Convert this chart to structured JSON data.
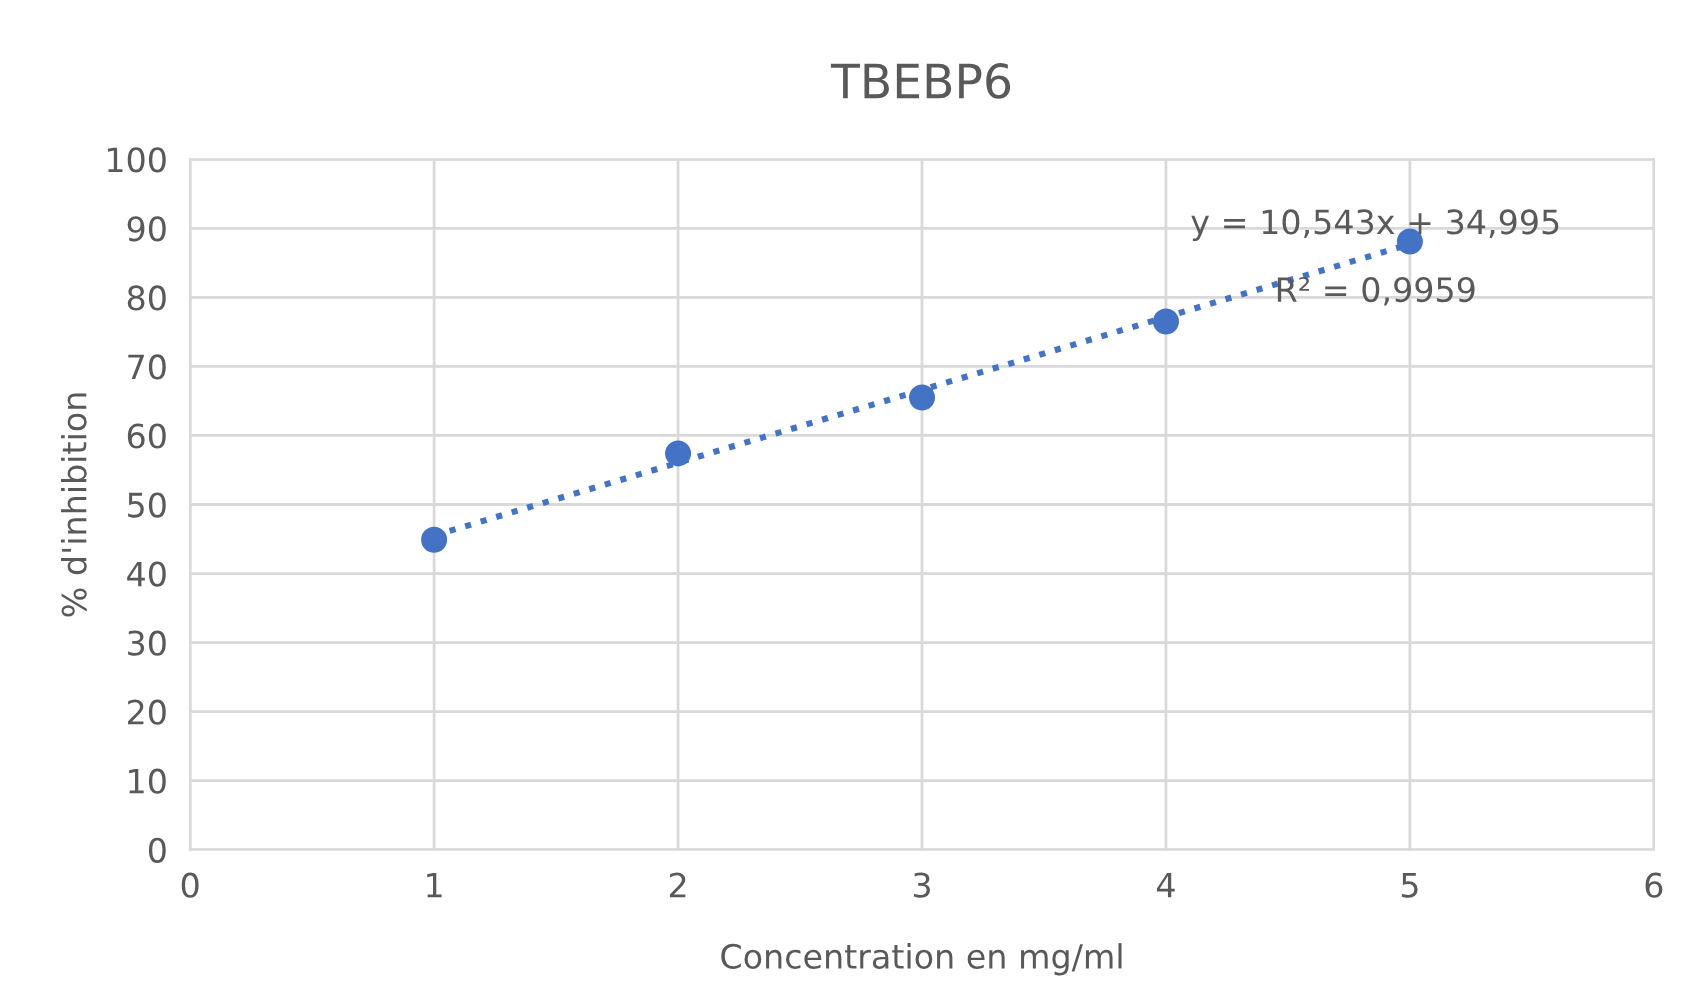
{
  "chart_data": {
    "type": "scatter",
    "title": "TBEBP6",
    "xlabel": "Concentration en mg/ml",
    "ylabel": "% d'inhibition",
    "series": [
      {
        "color": "#4472c4",
        "x": [
          1,
          2,
          3,
          4,
          5
        ],
        "values": [
          44.9,
          57.4,
          65.5,
          76.5,
          88.1
        ],
        "marker": "circle"
      },
      {
        "type": "line",
        "color": "#4472c4",
        "x": [
          1,
          5
        ],
        "values": [
          45.5,
          87.7
        ],
        "line_style": "dotted",
        "marker": "none"
      }
    ],
    "annotations": [
      "y = 10,543x + 34,995",
      "R² = 0,9959"
    ],
    "xlim": [
      0,
      6
    ],
    "xticks": [
      0,
      1,
      2,
      3,
      4,
      5,
      6
    ],
    "ylim": [
      0,
      100
    ],
    "yticks": [
      0,
      10,
      20,
      30,
      40,
      50,
      60,
      70,
      80,
      90,
      100
    ],
    "grid": true,
    "legend": false
  }
}
